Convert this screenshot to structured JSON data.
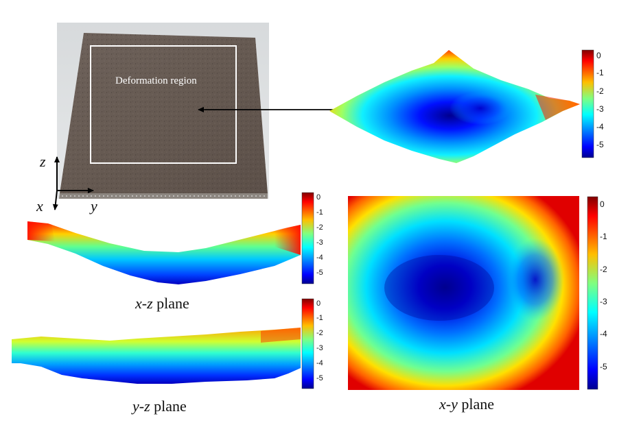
{
  "photo": {
    "region_label": "Deformation region"
  },
  "axes": {
    "z": "z",
    "x": "x",
    "y": "y"
  },
  "captions": {
    "xz": {
      "var": "x-z",
      "rest": " plane"
    },
    "yz": {
      "var": "y-z",
      "rest": " plane"
    },
    "xy": {
      "var": "x-y",
      "rest": " plane"
    }
  },
  "colorbars": {
    "surface3d": {
      "ticks": [
        "0",
        "-1",
        "-2",
        "-3",
        "-4",
        "-5"
      ]
    },
    "xz": {
      "ticks": [
        "0",
        "-1",
        "-2",
        "-3",
        "-4",
        "-5"
      ]
    },
    "yz": {
      "ticks": [
        "0",
        "-1",
        "-2",
        "-3",
        "-4",
        "-5"
      ]
    },
    "xy": {
      "ticks": [
        "0",
        "-1",
        "-2",
        "-3",
        "-4",
        "-5"
      ]
    }
  },
  "colors": {
    "jet": [
      "#00008f",
      "#0000ff",
      "#0080ff",
      "#00ffff",
      "#80ff80",
      "#ffff00",
      "#ff8000",
      "#ff0000",
      "#800000"
    ],
    "stone": "#6b5f57",
    "frame": "#ffffff",
    "arrow": "#000000"
  }
}
